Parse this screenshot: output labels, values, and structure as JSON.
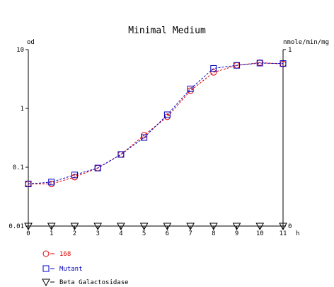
{
  "chart_data": {
    "type": "line",
    "title": "Minimal Medium",
    "y_left_label": "od",
    "y_right_label": "nmole/min/mg",
    "x_unit_label": "h",
    "x_ticks": [
      "0",
      "1",
      "2",
      "3",
      "4",
      "5",
      "6",
      "7",
      "8",
      "9",
      "10",
      "11"
    ],
    "y_left_ticks": [
      "10",
      "1",
      "0.1",
      "0.01"
    ],
    "y_right_ticks": [
      "1",
      "0"
    ],
    "y_left_scale": "log",
    "y_left_range": [
      0.01,
      10
    ],
    "y_right_range": [
      0,
      1
    ],
    "x_range": [
      0,
      11
    ],
    "grid": false,
    "legend_position": "bottom-left",
    "series": [
      {
        "name": "168",
        "color": "#e00000",
        "marker": "circle",
        "axis": "left",
        "x": [
          0,
          1,
          2,
          3,
          4,
          5,
          6,
          7,
          8,
          9,
          10,
          11
        ],
        "values": [
          0.052,
          0.052,
          0.068,
          0.097,
          0.165,
          0.35,
          0.72,
          2.0,
          4.1,
          5.4,
          6.0,
          5.7
        ]
      },
      {
        "name": "Mutant",
        "color": "#0000c0",
        "marker": "square",
        "axis": "left",
        "x": [
          0,
          1,
          2,
          3,
          4,
          5,
          6,
          7,
          8,
          9,
          10,
          11
        ],
        "values": [
          0.052,
          0.056,
          0.074,
          0.097,
          0.165,
          0.32,
          0.78,
          2.15,
          4.8,
          5.4,
          5.9,
          5.8
        ]
      },
      {
        "name": "Beta Galactosidase",
        "color": "#000000",
        "marker": "triangle-down",
        "axis": "right",
        "x": [
          0,
          1,
          2,
          3,
          4,
          5,
          6,
          7,
          8,
          9,
          10,
          11
        ],
        "values": [
          0,
          0,
          0,
          0,
          0,
          0,
          0,
          0,
          0,
          0,
          0,
          0
        ]
      }
    ]
  }
}
